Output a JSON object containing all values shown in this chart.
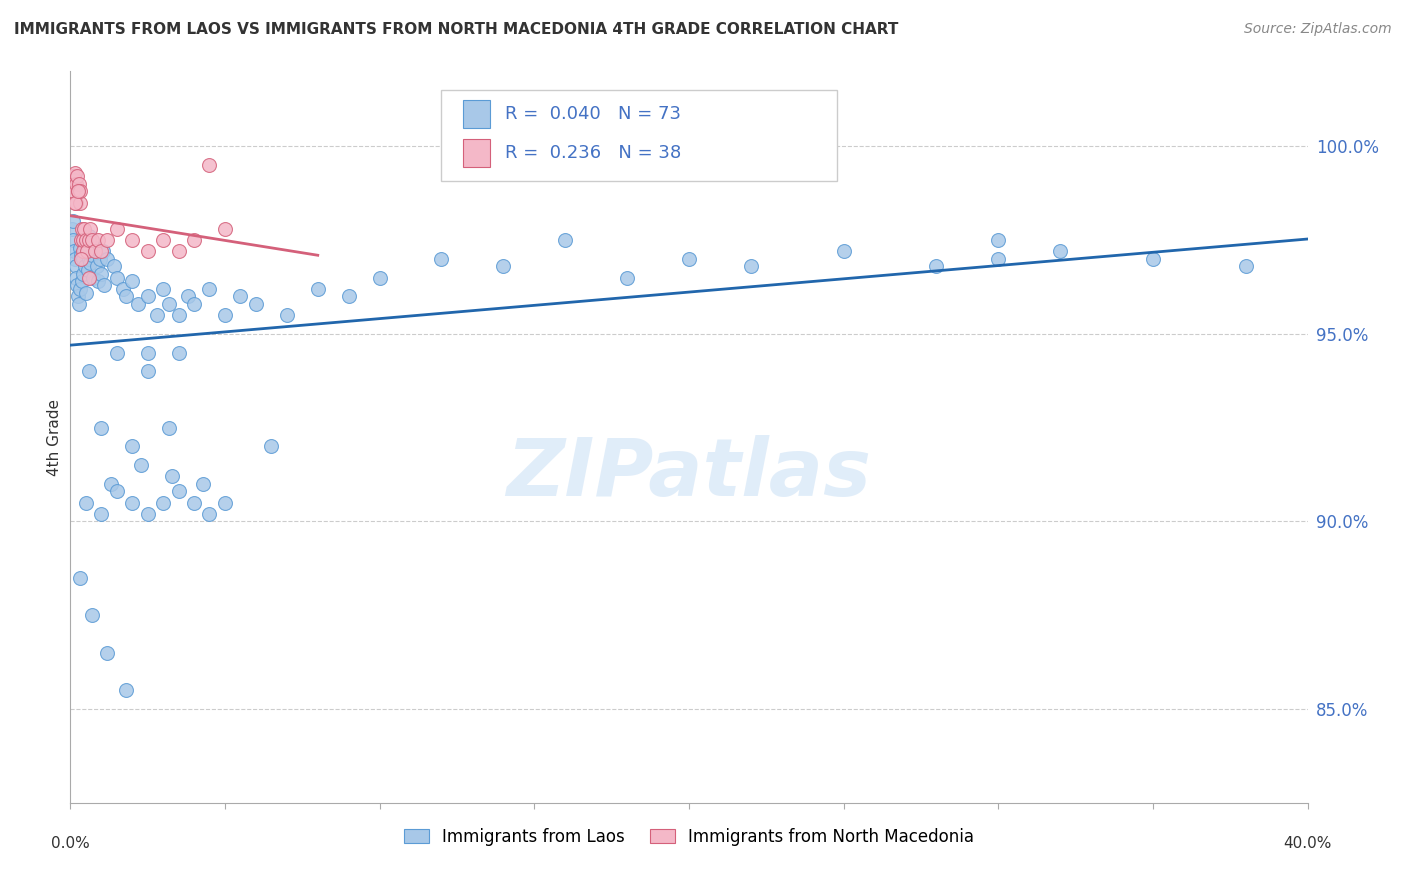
{
  "title": "IMMIGRANTS FROM LAOS VS IMMIGRANTS FROM NORTH MACEDONIA 4TH GRADE CORRELATION CHART",
  "source": "Source: ZipAtlas.com",
  "ylabel": "4th Grade",
  "ytick_values": [
    85.0,
    90.0,
    95.0,
    100.0
  ],
  "xlim": [
    0.0,
    40.0
  ],
  "ylim": [
    82.5,
    102.0
  ],
  "legend_label1": "Immigrants from Laos",
  "legend_label2": "Immigrants from North Macedonia",
  "R1": 0.04,
  "N1": 73,
  "R2": 0.236,
  "N2": 38,
  "color_blue_face": "#a8c8e8",
  "color_blue_edge": "#5b9bd5",
  "color_pink_face": "#f4b8c8",
  "color_pink_edge": "#d4607a",
  "color_line_blue": "#2166ac",
  "color_line_pink": "#d4607a",
  "watermark": "ZIPatlas",
  "blue_x": [
    0.05,
    0.08,
    0.1,
    0.12,
    0.15,
    0.18,
    0.2,
    0.22,
    0.25,
    0.28,
    0.3,
    0.32,
    0.35,
    0.38,
    0.4,
    0.42,
    0.45,
    0.48,
    0.5,
    0.52,
    0.55,
    0.58,
    0.6,
    0.62,
    0.65,
    0.7,
    0.75,
    0.8,
    0.85,
    0.9,
    0.95,
    1.0,
    1.05,
    1.1,
    1.2,
    1.4,
    1.5,
    1.7,
    1.8,
    2.0,
    2.2,
    2.5,
    2.8,
    3.0,
    3.2,
    3.5,
    3.8,
    4.0,
    4.5,
    5.0,
    5.5,
    6.0,
    7.0,
    8.0,
    9.0,
    10.0,
    12.0,
    14.0,
    16.0,
    18.0,
    20.0,
    22.0,
    25.0,
    28.0,
    30.0,
    32.0,
    35.0,
    38.0,
    1.3,
    2.3,
    3.3,
    4.3,
    6.5
  ],
  "blue_y": [
    97.8,
    98.0,
    97.5,
    97.2,
    97.0,
    96.8,
    96.5,
    96.3,
    96.0,
    95.8,
    97.3,
    96.2,
    97.1,
    96.4,
    97.0,
    96.6,
    97.2,
    96.8,
    97.5,
    96.1,
    97.4,
    96.7,
    97.6,
    97.0,
    96.9,
    97.1,
    96.5,
    97.3,
    96.8,
    96.4,
    97.0,
    96.6,
    97.2,
    96.3,
    97.0,
    96.8,
    96.5,
    96.2,
    96.0,
    96.4,
    95.8,
    96.0,
    95.5,
    96.2,
    95.8,
    95.5,
    96.0,
    95.8,
    96.2,
    95.5,
    96.0,
    95.8,
    95.5,
    96.2,
    96.0,
    96.5,
    97.0,
    96.8,
    97.5,
    96.5,
    97.0,
    96.8,
    97.2,
    96.8,
    97.0,
    97.2,
    97.0,
    96.8,
    91.0,
    91.5,
    91.2,
    91.0,
    92.0
  ],
  "blue_x_extra": [
    0.5,
    1.0,
    1.5,
    2.0,
    2.5,
    3.0,
    3.5,
    4.0,
    4.5,
    5.0,
    0.3,
    0.7,
    1.2,
    1.8,
    2.5,
    3.2,
    30.0,
    0.6,
    1.5,
    2.5,
    3.5,
    1.0,
    2.0
  ],
  "blue_y_extra": [
    90.5,
    90.2,
    90.8,
    90.5,
    90.2,
    90.5,
    90.8,
    90.5,
    90.2,
    90.5,
    88.5,
    87.5,
    86.5,
    85.5,
    94.5,
    92.5,
    97.5,
    94.0,
    94.5,
    94.0,
    94.5,
    92.5,
    92.0
  ],
  "pink_x": [
    0.05,
    0.08,
    0.1,
    0.12,
    0.15,
    0.18,
    0.2,
    0.22,
    0.25,
    0.28,
    0.3,
    0.32,
    0.35,
    0.38,
    0.4,
    0.42,
    0.45,
    0.5,
    0.55,
    0.6,
    0.65,
    0.7,
    0.8,
    0.9,
    1.0,
    1.2,
    1.5,
    2.0,
    2.5,
    3.0,
    3.5,
    4.0,
    5.0,
    0.15,
    0.25,
    0.35,
    0.6,
    4.5
  ],
  "pink_y": [
    99.0,
    99.2,
    98.8,
    99.1,
    99.3,
    99.0,
    98.5,
    99.2,
    98.8,
    99.0,
    98.5,
    98.8,
    97.5,
    97.8,
    97.2,
    97.5,
    97.8,
    97.5,
    97.2,
    97.5,
    97.8,
    97.5,
    97.2,
    97.5,
    97.2,
    97.5,
    97.8,
    97.5,
    97.2,
    97.5,
    97.2,
    97.5,
    97.8,
    98.5,
    98.8,
    97.0,
    96.5,
    99.5
  ]
}
